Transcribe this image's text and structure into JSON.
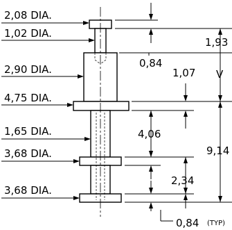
{
  "diameters": [
    {
      "value": "2,08",
      "unit": "DIA."
    },
    {
      "value": "1,02",
      "unit": "DIA."
    },
    {
      "value": "2,90",
      "unit": "DIA."
    },
    {
      "value": "4,75",
      "unit": "DIA."
    },
    {
      "value": "1,65",
      "unit": "DIA."
    },
    {
      "value": "3,68",
      "unit": "DIA."
    },
    {
      "value": "3,68",
      "unit": "DIA."
    }
  ],
  "dimensions": {
    "d1": "1,93",
    "d2": "0,84",
    "d3": "1,07",
    "d4": "4,06",
    "d5": "9,14",
    "d6": "2,34",
    "d7": "0,84",
    "d7_note": "(TYP)",
    "v_mark": "V"
  }
}
